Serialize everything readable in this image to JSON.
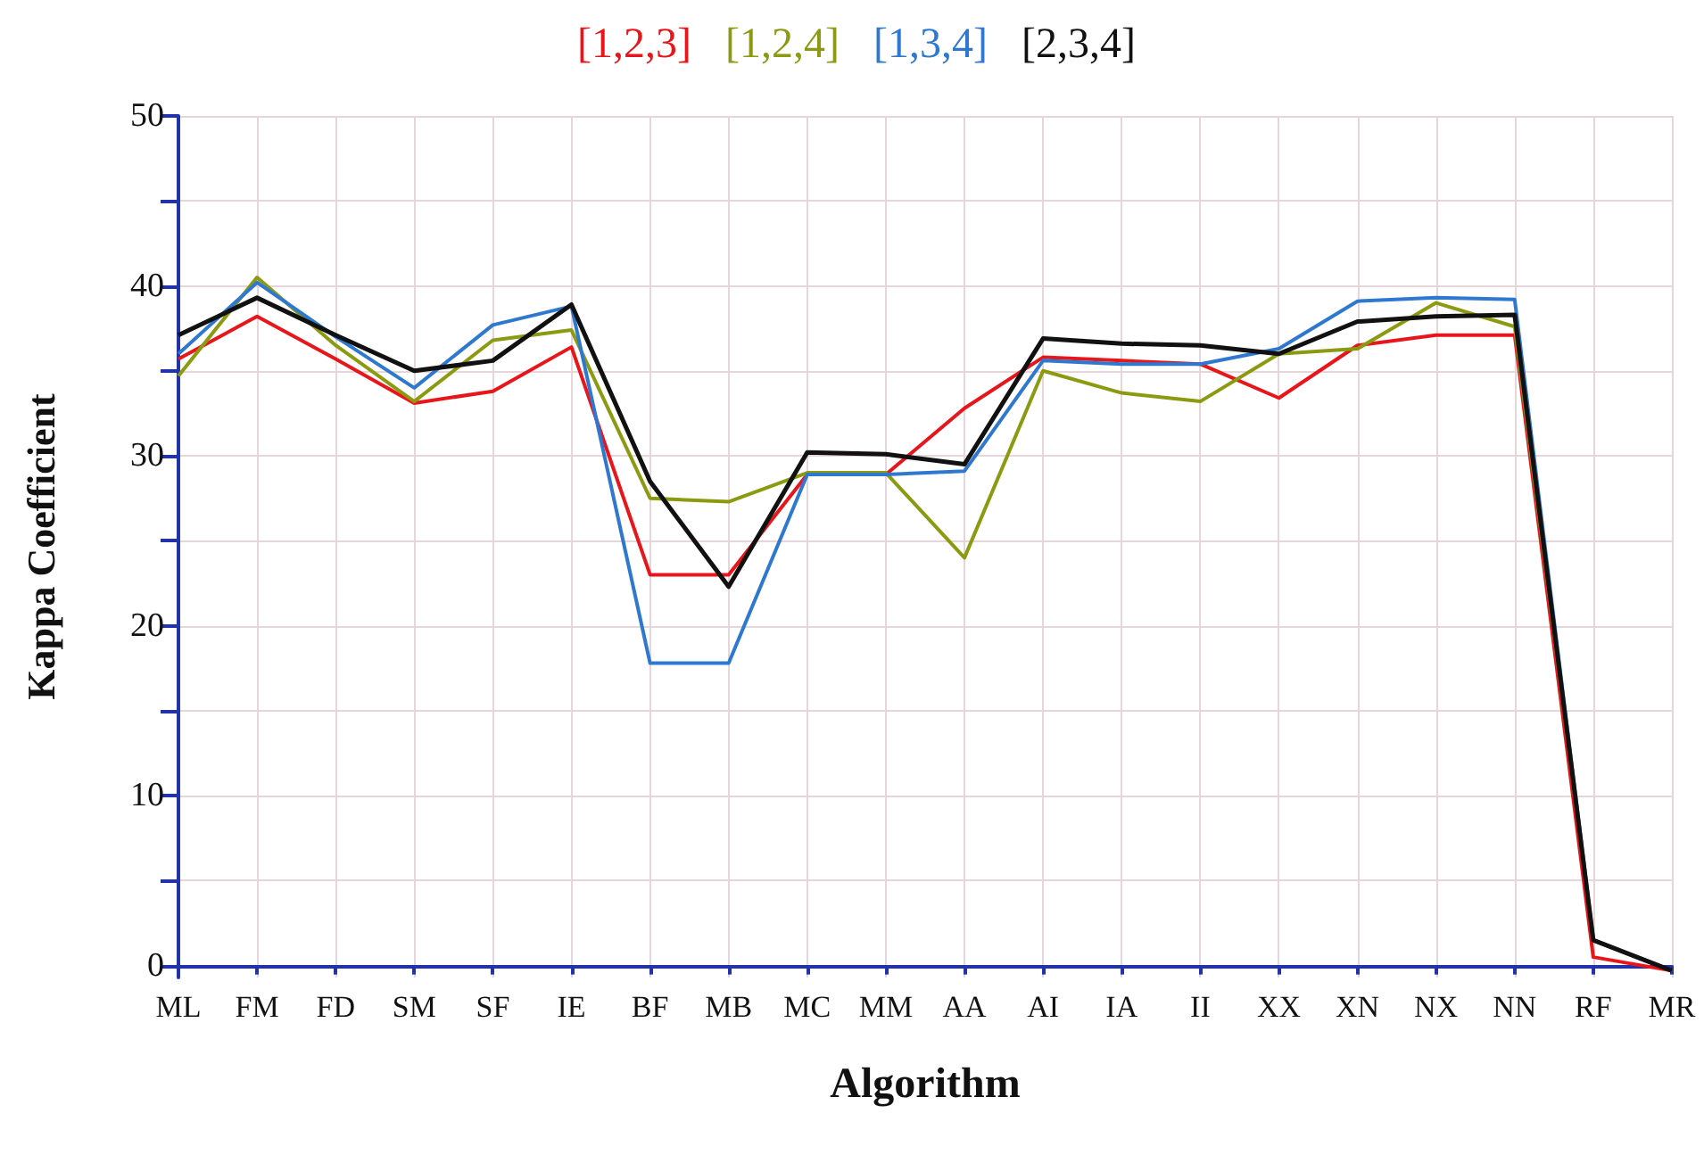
{
  "chart_data": {
    "type": "line",
    "xlabel": "Algorithm",
    "ylabel": "Kappa Coefficient",
    "categories": [
      "ML",
      "FM",
      "FD",
      "SM",
      "SF",
      "IE",
      "BF",
      "MB",
      "MC",
      "MM",
      "AA",
      "AI",
      "IA",
      "II",
      "XX",
      "XN",
      "NX",
      "NN",
      "RF",
      "MR"
    ],
    "series": [
      {
        "name": "[1,2,3]",
        "color": "#e8151b",
        "values": [
          35.7,
          38.2,
          35.7,
          33.1,
          33.8,
          36.4,
          23,
          23,
          28.9,
          28.9,
          32.8,
          35.8,
          35.6,
          35.4,
          33.4,
          36.5,
          37.1,
          37.1,
          0.5,
          -0.3
        ]
      },
      {
        "name": "[1,2,4]",
        "color": "#8c9a12",
        "values": [
          34.7,
          40.5,
          36.5,
          33.2,
          36.8,
          37.4,
          27.5,
          27.3,
          29,
          29,
          24,
          35,
          33.7,
          33.2,
          36,
          36.3,
          39,
          37.6,
          1.5,
          -0.3
        ]
      },
      {
        "name": "[1,3,4]",
        "color": "#2f78d0",
        "values": [
          36,
          40.2,
          37,
          34,
          37.7,
          38.8,
          17.8,
          17.8,
          28.9,
          28.9,
          29.1,
          35.6,
          35.4,
          35.4,
          36.3,
          39.1,
          39.3,
          39.2,
          1.5,
          -0.3
        ]
      },
      {
        "name": "[2,3,4]",
        "color": "#111111",
        "values": [
          37.1,
          39.3,
          37.1,
          35,
          35.6,
          38.9,
          28.5,
          22.3,
          30.2,
          30.1,
          29.5,
          36.9,
          36.6,
          36.5,
          36,
          37.9,
          38.2,
          38.3,
          1.5,
          -0.3
        ]
      }
    ],
    "ylim": [
      -0.7,
      50
    ],
    "yticks": [
      0,
      {
        "value": 5,
        "label": null
      },
      10,
      {
        "value": 15,
        "label": null
      },
      20,
      {
        "value": 25,
        "label": null
      },
      30,
      {
        "value": 35,
        "label": null
      },
      40,
      {
        "value": 45,
        "label": null
      },
      50
    ],
    "grid": true,
    "legend": "top",
    "marker": "none",
    "line_style": "solid"
  }
}
